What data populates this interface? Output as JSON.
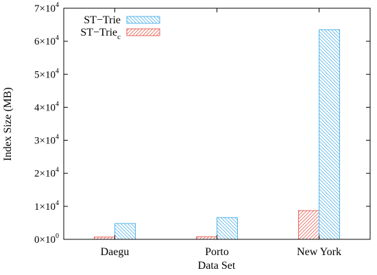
{
  "chart_data": {
    "type": "bar",
    "title": "",
    "xlabel": "Data Set",
    "ylabel": "Index Size (MB)",
    "categories": [
      "Daegu",
      "Porto",
      "New York"
    ],
    "series": [
      {
        "name": "ST−Trie",
        "subscript": "",
        "color": "#56b4e9",
        "pattern": "backslash",
        "values": [
          4800,
          6600,
          63500
        ]
      },
      {
        "name": "ST−Trie",
        "subscript": "c",
        "color": "#e8655a",
        "pattern": "slash",
        "values": [
          700,
          800,
          8700
        ]
      }
    ],
    "ylim": [
      0,
      70000
    ],
    "yticks": [
      {
        "value": 0,
        "mantissa": "0",
        "exp": "0"
      },
      {
        "value": 10000,
        "mantissa": "1",
        "exp": "4"
      },
      {
        "value": 20000,
        "mantissa": "2",
        "exp": "4"
      },
      {
        "value": 30000,
        "mantissa": "3",
        "exp": "4"
      },
      {
        "value": 40000,
        "mantissa": "4",
        "exp": "4"
      },
      {
        "value": 50000,
        "mantissa": "5",
        "exp": "4"
      },
      {
        "value": 60000,
        "mantissa": "6",
        "exp": "4"
      },
      {
        "value": 70000,
        "mantissa": "7",
        "exp": "4"
      }
    ],
    "tick_base": "×10",
    "grid": false,
    "legend_position": "top-left"
  }
}
